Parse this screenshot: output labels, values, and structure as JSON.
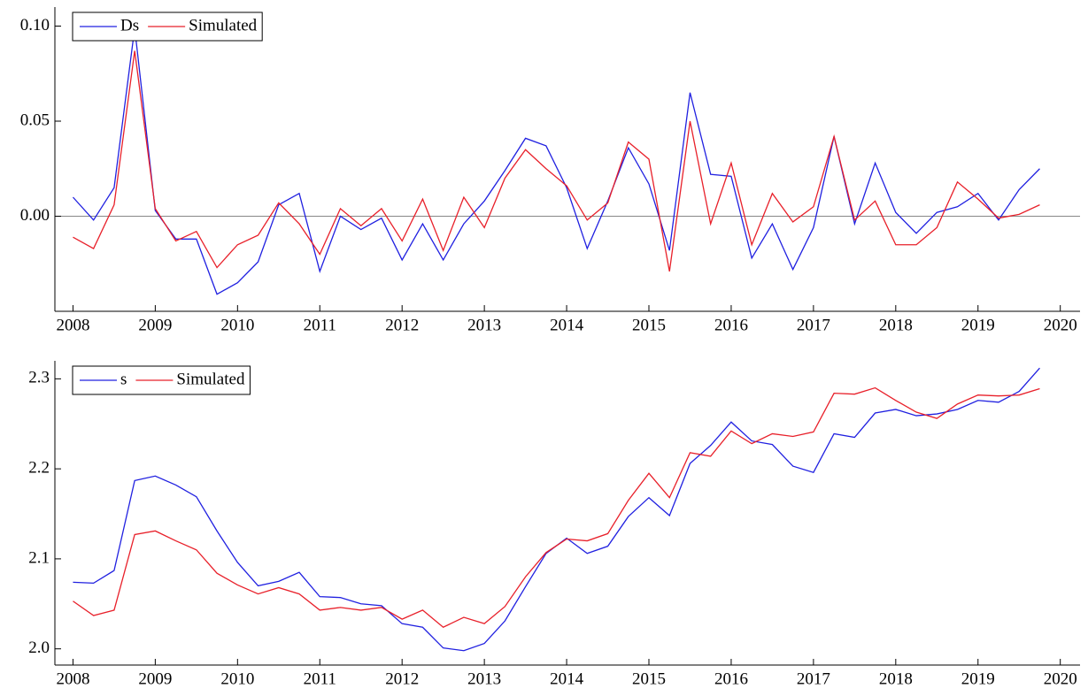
{
  "chart_data": [
    {
      "type": "line",
      "x": [
        2008,
        2008.25,
        2008.5,
        2008.75,
        2009,
        2009.25,
        2009.5,
        2009.75,
        2010,
        2010.25,
        2010.5,
        2010.75,
        2011,
        2011.25,
        2011.5,
        2011.75,
        2012,
        2012.25,
        2012.5,
        2012.75,
        2013,
        2013.25,
        2013.5,
        2013.75,
        2014,
        2014.25,
        2014.5,
        2014.75,
        2015,
        2015.25,
        2015.5,
        2015.75,
        2016,
        2016.25,
        2016.5,
        2016.75,
        2017,
        2017.25,
        2017.5,
        2017.75,
        2018,
        2018.25,
        2018.5,
        2018.75,
        2019,
        2019.25,
        2019.5,
        2019.75
      ],
      "series": [
        {
          "name": "Ds",
          "color": "#2020e0",
          "values": [
            0.01,
            -0.002,
            0.015,
            0.099,
            0.003,
            -0.012,
            -0.012,
            -0.041,
            -0.035,
            -0.024,
            0.006,
            0.012,
            -0.029,
            0.0,
            -0.007,
            -0.001,
            -0.023,
            -0.004,
            -0.023,
            -0.004,
            0.008,
            0.024,
            0.041,
            0.037,
            0.015,
            -0.017,
            0.008,
            0.036,
            0.017,
            -0.018,
            0.065,
            0.022,
            0.021,
            -0.022,
            -0.004,
            -0.028,
            -0.006,
            0.042,
            -0.004,
            0.028,
            0.002,
            -0.009,
            0.002,
            0.005,
            0.012,
            -0.002,
            0.014,
            0.025
          ]
        },
        {
          "name": "Simulated",
          "color": "#e8202a",
          "values": [
            -0.011,
            -0.017,
            0.006,
            0.087,
            0.004,
            -0.013,
            -0.008,
            -0.027,
            -0.015,
            -0.01,
            0.007,
            -0.004,
            -0.02,
            0.004,
            -0.005,
            0.004,
            -0.013,
            0.009,
            -0.018,
            0.01,
            -0.006,
            0.02,
            0.035,
            0.025,
            0.016,
            -0.002,
            0.007,
            0.039,
            0.03,
            -0.029,
            0.05,
            -0.004,
            0.028,
            -0.015,
            0.012,
            -0.003,
            0.005,
            0.042,
            -0.002,
            0.008,
            -0.015,
            -0.015,
            -0.006,
            0.018,
            0.009,
            -0.001,
            0.001,
            0.006
          ]
        }
      ],
      "xlim": [
        2007.78,
        2020.24
      ],
      "xticks": [
        2008,
        2009,
        2010,
        2011,
        2012,
        2013,
        2014,
        2015,
        2016,
        2017,
        2018,
        2019,
        2020
      ],
      "ylim": [
        -0.05,
        0.11
      ],
      "yticks": [
        {
          "value": 0,
          "label": "0.00"
        },
        {
          "value": 0.05,
          "label": "0.05"
        },
        {
          "value": 0.1,
          "label": "0.10"
        }
      ],
      "reference_line": 0,
      "legend": "upper-left"
    },
    {
      "type": "line",
      "x": [
        2008,
        2008.25,
        2008.5,
        2008.75,
        2009,
        2009.25,
        2009.5,
        2009.75,
        2010,
        2010.25,
        2010.5,
        2010.75,
        2011,
        2011.25,
        2011.5,
        2011.75,
        2012,
        2012.25,
        2012.5,
        2012.75,
        2013,
        2013.25,
        2013.5,
        2013.75,
        2014,
        2014.25,
        2014.5,
        2014.75,
        2015,
        2015.25,
        2015.5,
        2015.75,
        2016,
        2016.25,
        2016.5,
        2016.75,
        2017,
        2017.25,
        2017.5,
        2017.75,
        2018,
        2018.25,
        2018.5,
        2018.75,
        2019,
        2019.25,
        2019.5,
        2019.75
      ],
      "series": [
        {
          "name": "s",
          "color": "#2020e0",
          "values": [
            2.074,
            2.073,
            2.087,
            2.187,
            2.192,
            2.182,
            2.169,
            2.131,
            2.096,
            2.07,
            2.075,
            2.085,
            2.058,
            2.057,
            2.05,
            2.048,
            2.028,
            2.024,
            2.001,
            1.998,
            2.006,
            2.031,
            2.069,
            2.106,
            2.123,
            2.106,
            2.114,
            2.147,
            2.168,
            2.148,
            2.206,
            2.226,
            2.252,
            2.231,
            2.227,
            2.203,
            2.196,
            2.239,
            2.235,
            2.262,
            2.266,
            2.259,
            2.261,
            2.266,
            2.276,
            2.274,
            2.286,
            2.312
          ]
        },
        {
          "name": "Simulated",
          "color": "#e8202a",
          "values": [
            2.053,
            2.037,
            2.043,
            2.127,
            2.131,
            2.12,
            2.11,
            2.084,
            2.071,
            2.061,
            2.068,
            2.061,
            2.043,
            2.046,
            2.043,
            2.046,
            2.033,
            2.043,
            2.024,
            2.035,
            2.028,
            2.047,
            2.08,
            2.107,
            2.122,
            2.12,
            2.128,
            2.165,
            2.195,
            2.168,
            2.218,
            2.214,
            2.242,
            2.228,
            2.239,
            2.236,
            2.241,
            2.284,
            2.283,
            2.29,
            2.276,
            2.263,
            2.256,
            2.272,
            2.282,
            2.281,
            2.282,
            2.289
          ]
        }
      ],
      "xlim": [
        2007.78,
        2020.24
      ],
      "xticks": [
        2008,
        2009,
        2010,
        2011,
        2012,
        2013,
        2014,
        2015,
        2016,
        2017,
        2018,
        2019,
        2020
      ],
      "ylim": [
        1.982,
        2.32
      ],
      "yticks": [
        {
          "value": 2,
          "label": "2.0"
        },
        2.1,
        2.2,
        2.3
      ],
      "legend": "upper-left"
    }
  ]
}
